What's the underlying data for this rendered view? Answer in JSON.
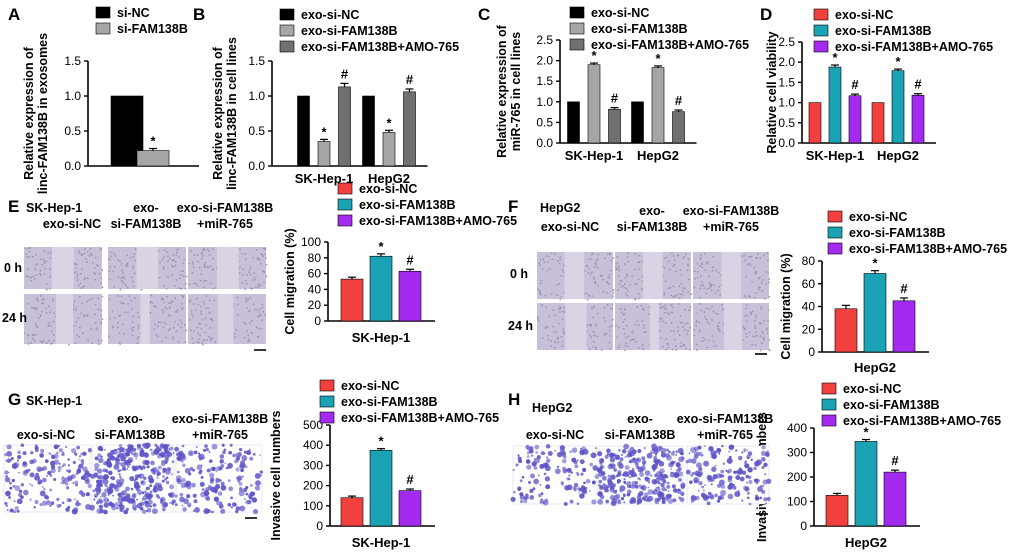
{
  "colors": {
    "black": "#000000",
    "gray": "#a6a6a6",
    "darkgray": "#707070",
    "red": "#f2403f",
    "teal": "#1ba3b5",
    "purple": "#a52af0",
    "scratch": "#c8bfd8",
    "scratch_gap": "#d9d3e3",
    "transwell": "#5f55c8"
  },
  "panels": {
    "A": {
      "label": "A"
    },
    "B": {
      "label": "B"
    },
    "C": {
      "label": "C"
    },
    "D": {
      "label": "D"
    },
    "E": {
      "label": "E",
      "cell": "SK-Hep-1"
    },
    "F": {
      "label": "F",
      "cell": "HepG2"
    },
    "G": {
      "label": "G",
      "cell": "SK-Hep-1"
    },
    "H": {
      "label": "H",
      "cell": "HepG2"
    }
  },
  "image_cols": {
    "col1": "exo-si-NC",
    "col2_l1": "exo-",
    "col2_l2": "si-FAM138B",
    "col3_l1": "exo-si-FAM138B",
    "col3_l2": "+miR-765"
  },
  "row_labels": {
    "r0": "0 h",
    "r24": "24 h"
  },
  "chart_data": [
    {
      "id": "A",
      "type": "bar",
      "categories": [
        ""
      ],
      "series": [
        {
          "name": "si-NC",
          "values": [
            1.0
          ],
          "color": "#000000"
        },
        {
          "name": "si-FAM138B",
          "values": [
            0.22
          ],
          "color": "#a6a6a6",
          "error": [
            0.03
          ]
        }
      ],
      "marks": [
        [
          "",
          "*"
        ]
      ],
      "ylabel_l1": "Relative expression of",
      "ylabel_l2": "linc-FAM138B in exosomes",
      "ylim": [
        0,
        1.5
      ],
      "yticks": [
        "0.0",
        "0.5",
        "1.0",
        "1.5"
      ],
      "legend_position": "top-left"
    },
    {
      "id": "B",
      "type": "bar",
      "categories": [
        "SK-Hep-1",
        "HepG2"
      ],
      "series": [
        {
          "name": "exo-si-NC",
          "values": [
            1.0,
            1.0
          ],
          "color": "#000000"
        },
        {
          "name": "exo-si-FAM138B",
          "values": [
            0.35,
            0.48
          ],
          "color": "#a6a6a6",
          "error": [
            0.03,
            0.03
          ]
        },
        {
          "name": "exo-si-FAM138B+AMO-765",
          "values": [
            1.13,
            1.06
          ],
          "color": "#707070",
          "error": [
            0.05,
            0.04
          ]
        }
      ],
      "marks": [
        [
          "",
          "*",
          "#"
        ],
        [
          "",
          "*",
          "#"
        ]
      ],
      "ylabel_l1": "Relative expression of",
      "ylabel_l2": "linc-FAM138B in cell lines",
      "ylim": [
        0,
        1.5
      ],
      "yticks": [
        "0.0",
        "0.5",
        "1.0",
        "1.5"
      ],
      "legend_position": "top"
    },
    {
      "id": "C",
      "type": "bar",
      "categories": [
        "SK-Hep-1",
        "HepG2"
      ],
      "series": [
        {
          "name": "exo-si-NC",
          "values": [
            1.0,
            1.0
          ],
          "color": "#000000"
        },
        {
          "name": "exo-si-FAM138B",
          "values": [
            1.9,
            1.83
          ],
          "color": "#a6a6a6",
          "error": [
            0.04,
            0.04
          ]
        },
        {
          "name": "exo-si-FAM138B+AMO-765",
          "values": [
            0.82,
            0.76
          ],
          "color": "#707070",
          "error": [
            0.04,
            0.04
          ]
        }
      ],
      "marks": [
        [
          "",
          "*",
          "#"
        ],
        [
          "",
          "*",
          "#"
        ]
      ],
      "ylabel_l1": "Relative expression of",
      "ylabel_l2": "miR-765 in cell lines",
      "ylim": [
        0,
        2.5
      ],
      "yticks": [
        "0.0",
        "0.5",
        "1.0",
        "1.5",
        "2.0",
        "2.5"
      ],
      "legend_position": "top"
    },
    {
      "id": "D",
      "type": "bar",
      "categories": [
        "SK-Hep-1",
        "HepG2"
      ],
      "series": [
        {
          "name": "exo-si-NC",
          "values": [
            1.0,
            1.0
          ],
          "color": "#f2403f"
        },
        {
          "name": "exo-si-FAM138B",
          "values": [
            1.88,
            1.79
          ],
          "color": "#1ba3b5",
          "error": [
            0.05,
            0.04
          ]
        },
        {
          "name": "exo-si-FAM138B+AMO-765",
          "values": [
            1.17,
            1.18
          ],
          "color": "#a52af0",
          "error": [
            0.04,
            0.04
          ]
        }
      ],
      "marks": [
        [
          "",
          "*",
          "#"
        ],
        [
          "",
          "*",
          "#"
        ]
      ],
      "ylabel_l1": "Relative cell viability",
      "ylabel_l2": "",
      "ylim": [
        0,
        2.5
      ],
      "yticks": [
        "0.0",
        "0.5",
        "1.0",
        "1.5",
        "2.0",
        "2.5"
      ],
      "legend_position": "top"
    },
    {
      "id": "E",
      "type": "bar",
      "categories": [
        "SK-Hep-1"
      ],
      "series": [
        {
          "name": "exo-si-NC",
          "values": [
            53
          ],
          "color": "#f2403f",
          "error": [
            2.5
          ]
        },
        {
          "name": "exo-si-FAM138B",
          "values": [
            82
          ],
          "color": "#1ba3b5",
          "error": [
            3
          ]
        },
        {
          "name": "exo-si-FAM138B+AMO-765",
          "values": [
            63
          ],
          "color": "#a52af0",
          "error": [
            2.5
          ]
        }
      ],
      "marks": [
        [
          "",
          "*",
          "#"
        ]
      ],
      "ylabel_l1": "Cell migration (%)",
      "ylabel_l2": "",
      "ylim": [
        0,
        100
      ],
      "yticks": [
        "0",
        "20",
        "40",
        "60",
        "80",
        "100"
      ],
      "legend_position": "top"
    },
    {
      "id": "F",
      "type": "bar",
      "categories": [
        "HepG2"
      ],
      "series": [
        {
          "name": "exo-si-NC",
          "values": [
            38
          ],
          "color": "#f2403f",
          "error": [
            3
          ]
        },
        {
          "name": "exo-si-FAM138B",
          "values": [
            69
          ],
          "color": "#1ba3b5",
          "error": [
            2.5
          ]
        },
        {
          "name": "exo-si-FAM138B+AMO-765",
          "values": [
            45
          ],
          "color": "#a52af0",
          "error": [
            2.5
          ]
        }
      ],
      "marks": [
        [
          "",
          "*",
          "#"
        ]
      ],
      "ylabel_l1": "Cell migration (%)",
      "ylabel_l2": "",
      "ylim": [
        0,
        80
      ],
      "yticks": [
        "0",
        "20",
        "40",
        "60",
        "80"
      ],
      "legend_position": "top"
    },
    {
      "id": "G",
      "type": "bar",
      "categories": [
        "SK-Hep-1"
      ],
      "series": [
        {
          "name": "exo-si-NC",
          "values": [
            140
          ],
          "color": "#f2403f",
          "error": [
            8
          ]
        },
        {
          "name": "exo-si-FAM138B",
          "values": [
            375
          ],
          "color": "#1ba3b5",
          "error": [
            8
          ]
        },
        {
          "name": "exo-si-FAM138B+AMO-765",
          "values": [
            175
          ],
          "color": "#a52af0",
          "error": [
            8
          ]
        }
      ],
      "marks": [
        [
          "",
          "*",
          "#"
        ]
      ],
      "ylabel_l1": "Invasive cell numbers",
      "ylabel_l2": "",
      "ylim": [
        0,
        500
      ],
      "yticks": [
        "0",
        "100",
        "200",
        "300",
        "400",
        "500"
      ],
      "legend_position": "top"
    },
    {
      "id": "H",
      "type": "bar",
      "categories": [
        "HepG2"
      ],
      "series": [
        {
          "name": "exo-si-NC",
          "values": [
            125
          ],
          "color": "#f2403f",
          "error": [
            8
          ]
        },
        {
          "name": "exo-si-FAM138B",
          "values": [
            345
          ],
          "color": "#1ba3b5",
          "error": [
            8
          ]
        },
        {
          "name": "exo-si-FAM138B+AMO-765",
          "values": [
            220
          ],
          "color": "#a52af0",
          "error": [
            8
          ]
        }
      ],
      "marks": [
        [
          "",
          "*",
          "#"
        ]
      ],
      "ylabel_l1": "Invasive cell numbers",
      "ylabel_l2": "",
      "ylim": [
        0,
        400
      ],
      "yticks": [
        "0",
        "100",
        "200",
        "300",
        "400"
      ],
      "legend_position": "top"
    }
  ]
}
